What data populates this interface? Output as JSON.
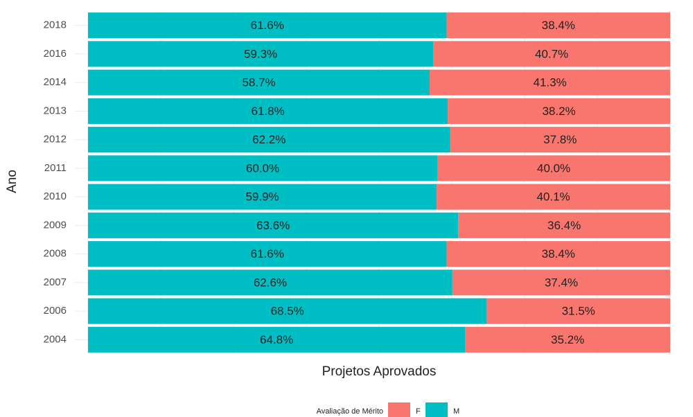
{
  "chart_data": {
    "type": "stacked-bar-horizontal",
    "xlabel": "Projetos Aprovados",
    "ylabel": "Ano",
    "categories": [
      "2018",
      "2016",
      "2014",
      "2013",
      "2012",
      "2011",
      "2010",
      "2009",
      "2008",
      "2007",
      "2006",
      "2004"
    ],
    "series": [
      {
        "name": "F",
        "color": "#f8766d",
        "values": [
          38.4,
          40.7,
          41.3,
          38.2,
          37.8,
          40.0,
          40.1,
          36.4,
          38.4,
          37.4,
          31.5,
          35.2
        ],
        "value_labels": [
          "38.4%",
          "40.7%",
          "41.3%",
          "38.2%",
          "37.8%",
          "40.0%",
          "40.1%",
          "36.4%",
          "38.4%",
          "37.4%",
          "31.5%",
          "35.2%"
        ]
      },
      {
        "name": "M",
        "color": "#00bfc4",
        "values": [
          61.6,
          59.3,
          58.7,
          61.8,
          62.2,
          60.0,
          59.9,
          63.6,
          61.6,
          62.6,
          68.5,
          64.8
        ],
        "value_labels": [
          "61.6%",
          "59.3%",
          "58.7%",
          "61.8%",
          "62.2%",
          "60.0%",
          "59.9%",
          "63.6%",
          "61.6%",
          "62.6%",
          "68.5%",
          "64.8%"
        ]
      }
    ],
    "legend_title": "Avaliação de Mérito",
    "legend_position": "bottom",
    "xlim": [
      0,
      100
    ],
    "xticks": [
      0,
      12.5,
      25,
      37.5,
      50,
      62.5,
      75,
      87.5,
      100
    ],
    "grid": true
  }
}
